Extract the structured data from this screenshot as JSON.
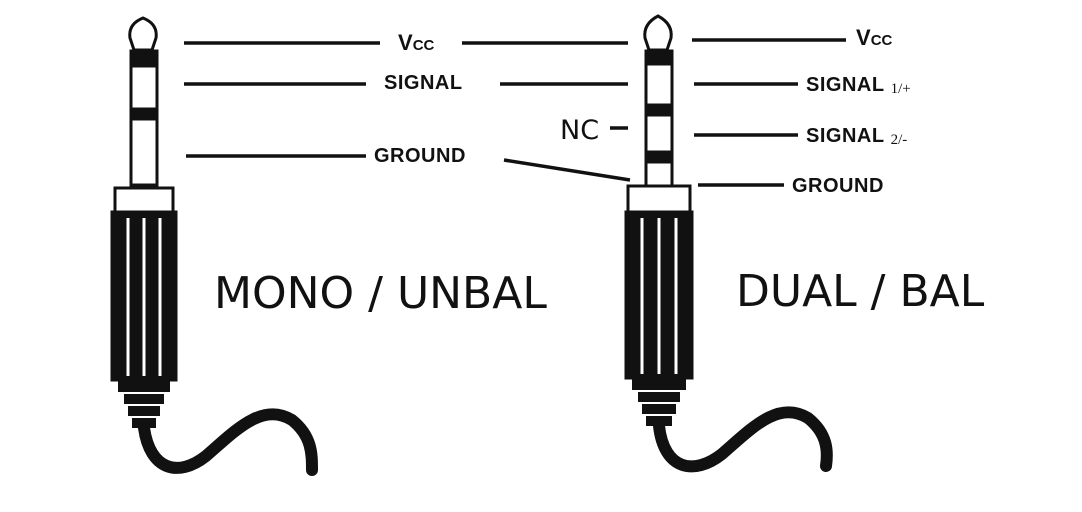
{
  "mono": {
    "vcc_letter": "V",
    "vcc_sub": "CC",
    "signal_label": "SIGNAL",
    "ground_label": "GROUND",
    "title": "MONO / UNBAL"
  },
  "dual": {
    "vcc_letter": "V",
    "vcc_sub": "CC",
    "signal1_label": "SIGNAL",
    "signal1_sub": "1/+",
    "nc_label": "NC",
    "signal2_label": "SIGNAL",
    "signal2_sub": "2/-",
    "ground_label": "GROUND",
    "title": "DUAL / BAL"
  }
}
